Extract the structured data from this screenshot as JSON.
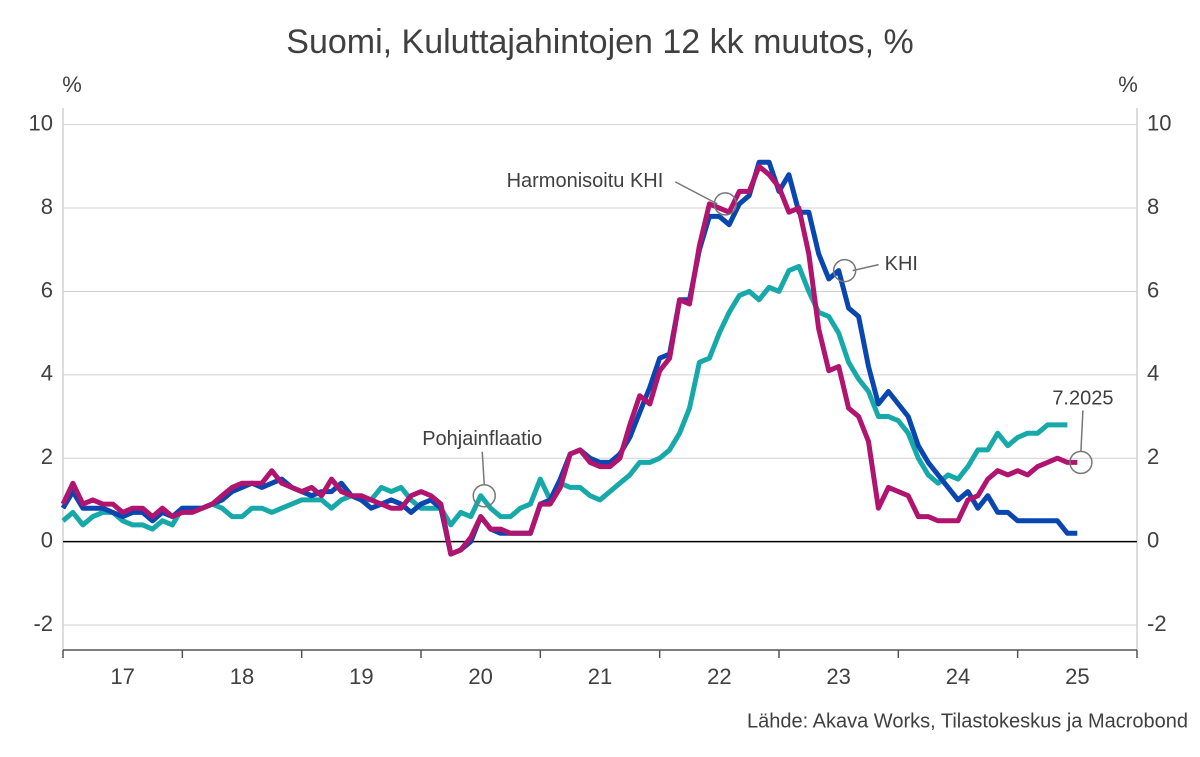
{
  "chart_data": {
    "type": "line",
    "title": "Suomi, Kuluttajahintojen 12 kk muutos, %",
    "y_label": "%",
    "y2_label": "%",
    "source": "Lähde: Akava Works, Tilastokeskus ja Macrobond",
    "xlim": [
      2017,
      2026
    ],
    "xticks": [
      {
        "value": 2017.5,
        "label": "17"
      },
      {
        "value": 2018.5,
        "label": "18"
      },
      {
        "value": 2019.5,
        "label": "19"
      },
      {
        "value": 2020.5,
        "label": "20"
      },
      {
        "value": 2021.5,
        "label": "21"
      },
      {
        "value": 2022.5,
        "label": "22"
      },
      {
        "value": 2023.5,
        "label": "23"
      },
      {
        "value": 2024.5,
        "label": "24"
      },
      {
        "value": 2025.5,
        "label": "25"
      }
    ],
    "ylim": [
      -2.6,
      10.4
    ],
    "yticks": [
      -2,
      0,
      2,
      4,
      6,
      8,
      10
    ],
    "y2lim": [
      -2.6,
      10.4
    ],
    "y2ticks": [
      -2,
      0,
      2,
      4,
      6,
      8,
      10
    ],
    "grid": true,
    "x": [
      2017,
      2017.083,
      2017.167,
      2017.25,
      2017.333,
      2017.417,
      2017.5,
      2017.583,
      2017.667,
      2017.75,
      2017.833,
      2017.917,
      2018,
      2018.083,
      2018.167,
      2018.25,
      2018.333,
      2018.417,
      2018.5,
      2018.583,
      2018.667,
      2018.75,
      2018.833,
      2018.917,
      2019,
      2019.083,
      2019.167,
      2019.25,
      2019.333,
      2019.417,
      2019.5,
      2019.583,
      2019.667,
      2019.75,
      2019.833,
      2019.917,
      2020,
      2020.083,
      2020.167,
      2020.25,
      2020.333,
      2020.417,
      2020.5,
      2020.583,
      2020.667,
      2020.75,
      2020.833,
      2020.917,
      2021,
      2021.083,
      2021.167,
      2021.25,
      2021.333,
      2021.417,
      2021.5,
      2021.583,
      2021.667,
      2021.75,
      2021.833,
      2021.917,
      2022,
      2022.083,
      2022.167,
      2022.25,
      2022.333,
      2022.417,
      2022.5,
      2022.583,
      2022.667,
      2022.75,
      2022.833,
      2022.917,
      2023,
      2023.083,
      2023.167,
      2023.25,
      2023.333,
      2023.417,
      2023.5,
      2023.583,
      2023.667,
      2023.75,
      2023.833,
      2023.917,
      2024,
      2024.083,
      2024.167,
      2024.25,
      2024.333,
      2024.417,
      2024.5,
      2024.583,
      2024.667,
      2024.75,
      2024.833,
      2024.917,
      2025,
      2025.083,
      2025.167,
      2025.25,
      2025.333,
      2025.417,
      2025.5
    ],
    "series": [
      {
        "name": "Pohjainflaatio",
        "color": "#17a9a9",
        "values": [
          0.5,
          0.7,
          0.4,
          0.6,
          0.7,
          0.7,
          0.5,
          0.4,
          0.4,
          0.3,
          0.5,
          0.4,
          0.8,
          0.8,
          0.8,
          0.9,
          0.8,
          0.6,
          0.6,
          0.8,
          0.8,
          0.7,
          0.8,
          0.9,
          1.0,
          1.0,
          1.0,
          0.8,
          1.0,
          1.1,
          1.0,
          1.0,
          1.3,
          1.2,
          1.3,
          1.0,
          0.8,
          0.8,
          0.8,
          0.4,
          0.7,
          0.6,
          1.1,
          0.8,
          0.6,
          0.6,
          0.8,
          0.9,
          1.5,
          1.0,
          1.4,
          1.3,
          1.3,
          1.1,
          1.0,
          1.2,
          1.4,
          1.6,
          1.9,
          1.9,
          2.0,
          2.2,
          2.6,
          3.2,
          4.3,
          4.4,
          5.0,
          5.5,
          5.9,
          6.0,
          5.8,
          6.1,
          6.0,
          6.5,
          6.6,
          6.0,
          5.5,
          5.4,
          5.0,
          4.3,
          3.9,
          3.6,
          3.0,
          3.0,
          2.9,
          2.6,
          2.0,
          1.6,
          1.4,
          1.6,
          1.5,
          1.8,
          2.2,
          2.2,
          2.6,
          2.3,
          2.5,
          2.6,
          2.6,
          2.8,
          2.8,
          2.8,
          null
        ]
      },
      {
        "name": "KHI",
        "color": "#0a46b0",
        "values": [
          0.8,
          1.2,
          0.8,
          0.8,
          0.8,
          0.7,
          0.6,
          0.7,
          0.7,
          0.5,
          0.7,
          0.6,
          0.8,
          0.8,
          0.8,
          0.9,
          1.0,
          1.2,
          1.3,
          1.4,
          1.3,
          1.4,
          1.5,
          1.3,
          1.2,
          1.1,
          1.2,
          1.2,
          1.4,
          1.1,
          1.0,
          0.8,
          0.9,
          1.0,
          0.9,
          0.7,
          0.9,
          1.0,
          0.8,
          -0.3,
          -0.2,
          0.0,
          0.6,
          0.3,
          0.2,
          0.2,
          0.2,
          0.2,
          0.9,
          1.0,
          1.5,
          2.1,
          2.2,
          2.0,
          1.9,
          1.9,
          2.1,
          2.5,
          3.1,
          3.7,
          4.4,
          4.5,
          5.8,
          5.8,
          7.0,
          7.8,
          7.8,
          7.6,
          8.1,
          8.3,
          9.1,
          9.1,
          8.4,
          8.8,
          7.9,
          7.9,
          6.9,
          6.3,
          6.5,
          5.6,
          5.4,
          4.2,
          3.3,
          3.6,
          3.3,
          3.0,
          2.3,
          1.9,
          1.6,
          1.3,
          1.0,
          1.2,
          0.8,
          1.1,
          0.7,
          0.7,
          0.5,
          0.5,
          0.5,
          0.5,
          0.5,
          0.2,
          0.2
        ]
      },
      {
        "name": "Harmonisoitu KHI",
        "color": "#b0146f",
        "values": [
          0.9,
          1.4,
          0.9,
          1.0,
          0.9,
          0.9,
          0.7,
          0.8,
          0.8,
          0.6,
          0.8,
          0.6,
          0.7,
          0.7,
          0.8,
          0.9,
          1.1,
          1.3,
          1.4,
          1.4,
          1.4,
          1.7,
          1.4,
          1.3,
          1.2,
          1.3,
          1.1,
          1.5,
          1.2,
          1.1,
          1.1,
          1.0,
          0.9,
          0.8,
          0.8,
          1.1,
          1.2,
          1.1,
          0.9,
          -0.3,
          -0.2,
          0.1,
          0.6,
          0.3,
          0.3,
          0.2,
          0.2,
          0.2,
          0.9,
          0.9,
          1.3,
          2.1,
          2.2,
          1.9,
          1.8,
          1.8,
          2.0,
          2.8,
          3.5,
          3.3,
          4.1,
          4.4,
          5.8,
          5.7,
          7.1,
          8.1,
          8.0,
          7.9,
          8.4,
          8.4,
          9.0,
          8.8,
          8.5,
          7.9,
          8.0,
          6.9,
          5.1,
          4.1,
          4.2,
          3.2,
          3.0,
          2.4,
          0.8,
          1.3,
          1.2,
          1.1,
          0.6,
          0.6,
          0.5,
          0.5,
          0.5,
          1.0,
          1.1,
          1.5,
          1.7,
          1.6,
          1.7,
          1.6,
          1.8,
          1.9,
          2.0,
          1.9,
          1.9
        ]
      }
    ],
    "annotations": [
      {
        "text": "Harmonisoitu KHI",
        "x": 2022.55,
        "y": 8.1
      },
      {
        "text": "KHI",
        "x": 2023.55,
        "y": 6.5
      },
      {
        "text": "Pohjainflaatio",
        "x": 2020.53,
        "y": 1.1
      },
      {
        "text": "7.2025",
        "x": 2025.53,
        "y": 1.9
      }
    ]
  }
}
